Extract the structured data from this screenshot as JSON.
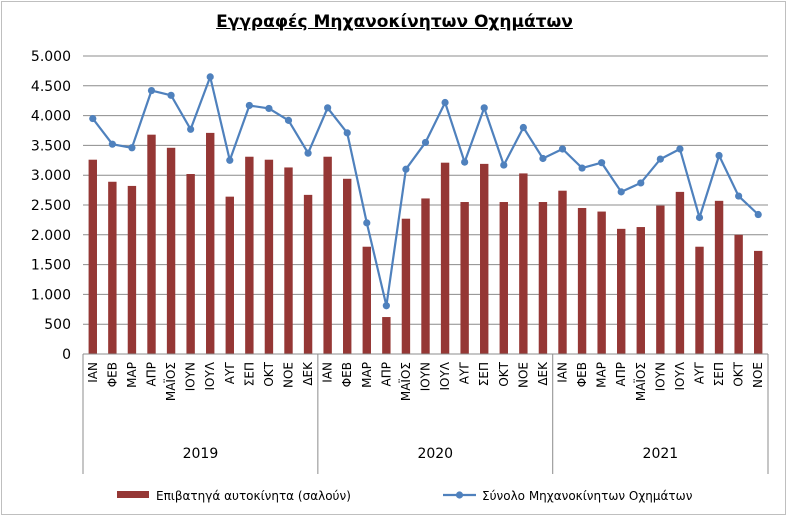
{
  "chart_data": {
    "type": "bar",
    "title": "Εγγραφές Μηχανοκίνητων Οχημάτων",
    "xlabel": "",
    "ylabel": "",
    "ylim": [
      0,
      5000
    ],
    "yticks": [
      0,
      500,
      1000,
      1500,
      2000,
      2500,
      3000,
      3500,
      4000,
      4500,
      5000
    ],
    "ytick_labels": [
      "0",
      "500",
      "1.000",
      "1.500",
      "2.000",
      "2.500",
      "3.000",
      "3.500",
      "4.000",
      "4.500",
      "5.000"
    ],
    "grid": true,
    "legend_position": "bottom",
    "categories": [
      "ΙΑΝ",
      "ΦΕΒ",
      "ΜΑΡ",
      "ΑΠΡ",
      "ΜΑΪΟΣ",
      "ΙΟΥΝ",
      "ΙΟΥΛ",
      "ΑΥΓ",
      "ΣΕΠ",
      "ΟΚΤ",
      "ΝΟΕ",
      "ΔΕΚ",
      "ΙΑΝ",
      "ΦΕΒ",
      "ΜΑΡ",
      "ΑΠΡ",
      "ΜΑΪΟΣ",
      "ΙΟΥΝ",
      "ΙΟΥΛ",
      "ΑΥΓ",
      "ΣΕΠ",
      "ΟΚΤ",
      "ΝΟΕ",
      "ΔΕΚ",
      "ΙΑΝ",
      "ΦΕΒ",
      "ΜΑΡ",
      "ΑΠΡ",
      "ΜΑΪΟΣ",
      "ΙΟΥΝ",
      "ΙΟΥΛ",
      "ΑΥΓ",
      "ΣΕΠ",
      "ΟΚΤ",
      "ΝΟΕ"
    ],
    "groups": [
      {
        "label": "2019",
        "start": 0,
        "count": 12
      },
      {
        "label": "2020",
        "start": 12,
        "count": 12
      },
      {
        "label": "2021",
        "start": 24,
        "count": 11
      }
    ],
    "series": [
      {
        "name": "Επιβατηγά αυτοκίνητα (σαλούν)",
        "type": "bar",
        "color": "#953735",
        "values": [
          3260,
          2890,
          2820,
          3680,
          3460,
          3020,
          3710,
          2640,
          3310,
          3260,
          3130,
          2670,
          3310,
          2940,
          1800,
          620,
          2270,
          2610,
          3210,
          2550,
          3190,
          2550,
          3030,
          2550,
          2740,
          2450,
          2390,
          2100,
          2130,
          2490,
          2720,
          1800,
          2570,
          2000,
          1730
        ]
      },
      {
        "name": "Σύνολο Μηχανοκίνητων Οχημάτων",
        "type": "line",
        "color": "#4f81bd",
        "values": [
          3950,
          3520,
          3460,
          4420,
          4340,
          3770,
          4650,
          3250,
          4170,
          4120,
          3920,
          3370,
          4130,
          3710,
          2200,
          810,
          3100,
          3550,
          4220,
          3220,
          4130,
          3170,
          3800,
          3280,
          3440,
          3120,
          3210,
          2720,
          2870,
          3270,
          3440,
          2290,
          3330,
          2650,
          2340
        ]
      }
    ]
  }
}
